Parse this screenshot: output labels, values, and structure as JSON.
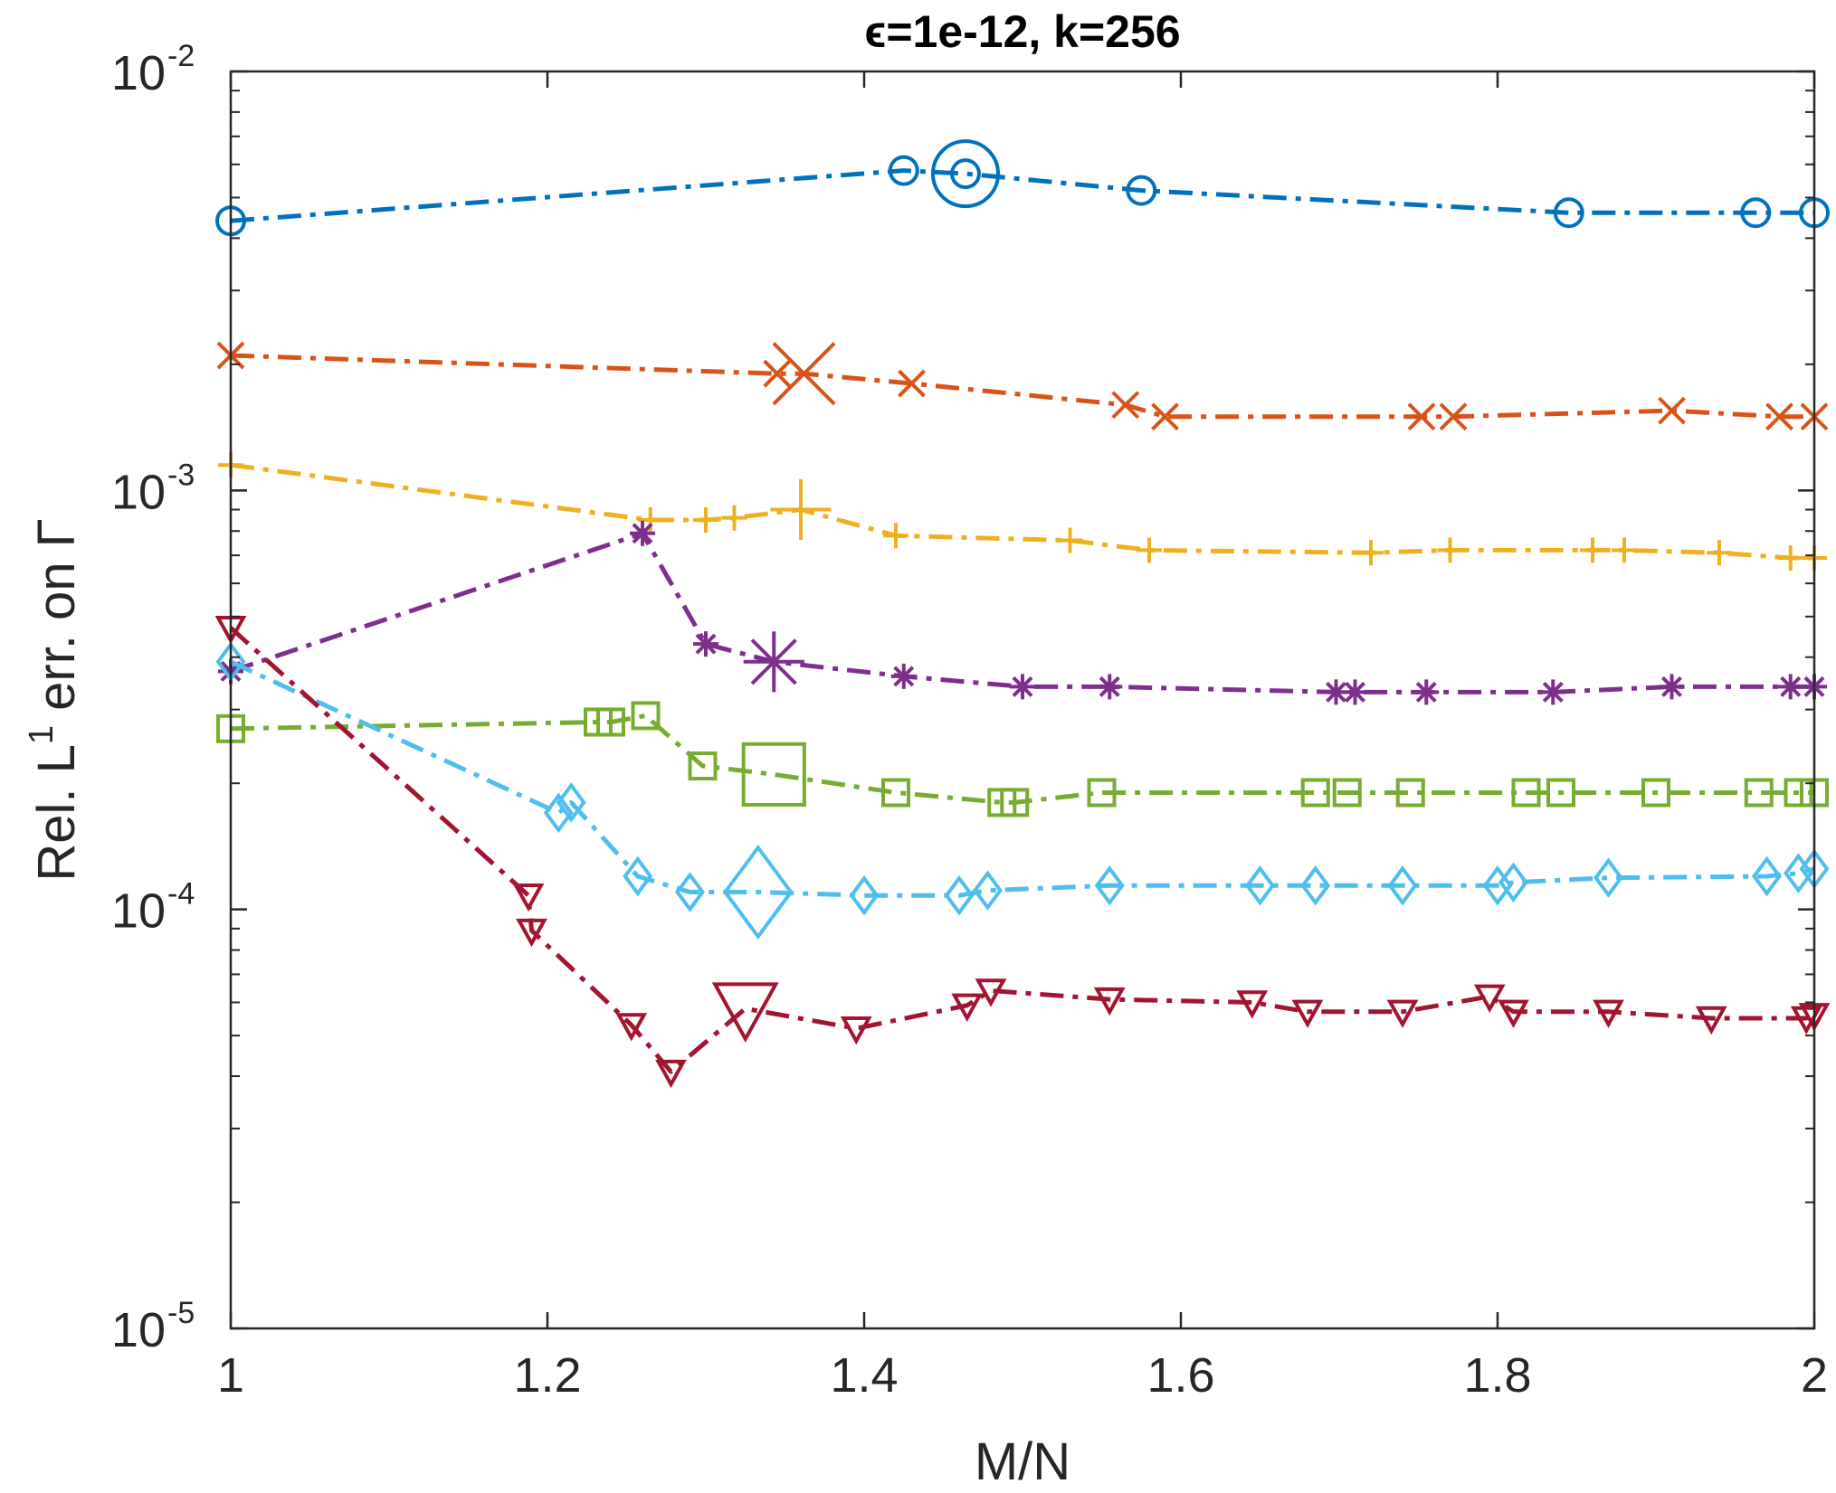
{
  "chart_data": {
    "type": "line",
    "title": "ϵ=1e-12, k=256",
    "xlabel": "M/N",
    "ylabel_parts": {
      "prefix": "Rel. L",
      "superscript": "1",
      "suffix": " err. on Γ"
    },
    "xlim": [
      1,
      2
    ],
    "ylim": [
      1e-05,
      0.01
    ],
    "yscale": "log",
    "x_ticks": [
      "1",
      "1.2",
      "1.4",
      "1.6",
      "1.8",
      "2"
    ],
    "y_ticks": [
      {
        "base": "10",
        "exp": "-5",
        "value": 1e-05
      },
      {
        "base": "10",
        "exp": "-4",
        "value": 0.0001
      },
      {
        "base": "10",
        "exp": "-3",
        "value": 0.001
      },
      {
        "base": "10",
        "exp": "-2",
        "value": 0.01
      }
    ],
    "series": [
      {
        "name": "circle",
        "color": "#0072bd",
        "marker": "circle",
        "x": [
          1.0,
          1.425,
          1.464,
          1.575,
          1.845,
          1.963,
          2.0
        ],
        "y": [
          0.0044,
          0.0058,
          0.0057,
          0.0052,
          0.0046,
          0.0046,
          0.0046
        ],
        "big_index": 2
      },
      {
        "name": "cross",
        "color": "#d95319",
        "marker": "x",
        "x": [
          1.0,
          1.345,
          1.362,
          1.43,
          1.565,
          1.59,
          1.752,
          1.772,
          1.91,
          1.978,
          2.0
        ],
        "y": [
          0.0021,
          0.0019,
          0.0019,
          0.0018,
          0.0016,
          0.0015,
          0.0015,
          0.0015,
          0.00155,
          0.0015,
          0.0015
        ],
        "big_index": 2
      },
      {
        "name": "plus",
        "color": "#edb120",
        "marker": "plus",
        "x": [
          1.0,
          1.265,
          1.3,
          1.318,
          1.36,
          1.42,
          1.53,
          1.58,
          1.72,
          1.77,
          1.86,
          1.88,
          1.94,
          1.985,
          2.0
        ],
        "y": [
          0.00115,
          0.00085,
          0.00085,
          0.00086,
          0.0009,
          0.00078,
          0.00076,
          0.00072,
          0.00071,
          0.00072,
          0.00072,
          0.00072,
          0.00071,
          0.00069,
          0.00069
        ],
        "big_index": 4
      },
      {
        "name": "asterisk",
        "color": "#7e2f8e",
        "marker": "asterisk",
        "x": [
          1.0,
          1.26,
          1.3,
          1.343,
          1.425,
          1.5,
          1.555,
          1.698,
          1.71,
          1.755,
          1.835,
          1.91,
          1.985,
          2.0
        ],
        "y": [
          0.00037,
          0.00079,
          0.00043,
          0.00039,
          0.00036,
          0.00034,
          0.00034,
          0.00033,
          0.00033,
          0.00033,
          0.00033,
          0.00034,
          0.00034,
          0.00034
        ],
        "big_index": 3
      },
      {
        "name": "square",
        "color": "#77ac30",
        "marker": "square",
        "x": [
          1.0,
          1.232,
          1.24,
          1.262,
          1.298,
          1.343,
          1.42,
          1.487,
          1.495,
          1.55,
          1.685,
          1.705,
          1.745,
          1.818,
          1.84,
          1.9,
          1.965,
          1.99,
          2.0
        ],
        "y": [
          0.00027,
          0.00028,
          0.00028,
          0.00029,
          0.00022,
          0.00021,
          0.00019,
          0.00018,
          0.00018,
          0.00019,
          0.00019,
          0.00019,
          0.00019,
          0.00019,
          0.00019,
          0.00019,
          0.00019,
          0.00019,
          0.00019
        ],
        "big_index": 5
      },
      {
        "name": "diamond",
        "color": "#4dbeee",
        "marker": "diamond",
        "x": [
          1.0,
          1.207,
          1.215,
          1.257,
          1.29,
          1.333,
          1.4,
          1.46,
          1.478,
          1.555,
          1.65,
          1.685,
          1.74,
          1.8,
          1.81,
          1.87,
          1.97,
          1.99,
          2.0
        ],
        "y": [
          0.00039,
          0.00017,
          0.00018,
          0.00012,
          0.00011,
          0.00011,
          0.000108,
          0.000108,
          0.000111,
          0.000114,
          0.000114,
          0.000114,
          0.000114,
          0.000114,
          0.000116,
          0.000119,
          0.00012,
          0.000122,
          0.000125
        ],
        "big_index": 5
      },
      {
        "name": "triangle",
        "color": "#a2142f",
        "marker": "triangle",
        "x": [
          1.0,
          1.188,
          1.19,
          1.253,
          1.278,
          1.325,
          1.395,
          1.465,
          1.48,
          1.555,
          1.645,
          1.68,
          1.74,
          1.795,
          1.81,
          1.87,
          1.935,
          1.995,
          2.0
        ],
        "y": [
          0.00047,
          0.000108,
          8.9e-05,
          5.3e-05,
          4.1e-05,
          5.8e-05,
          5.2e-05,
          5.9e-05,
          6.4e-05,
          6.1e-05,
          6e-05,
          5.7e-05,
          5.7e-05,
          6.2e-05,
          5.7e-05,
          5.7e-05,
          5.5e-05,
          5.5e-05,
          5.6e-05
        ],
        "big_index": 5
      }
    ]
  }
}
